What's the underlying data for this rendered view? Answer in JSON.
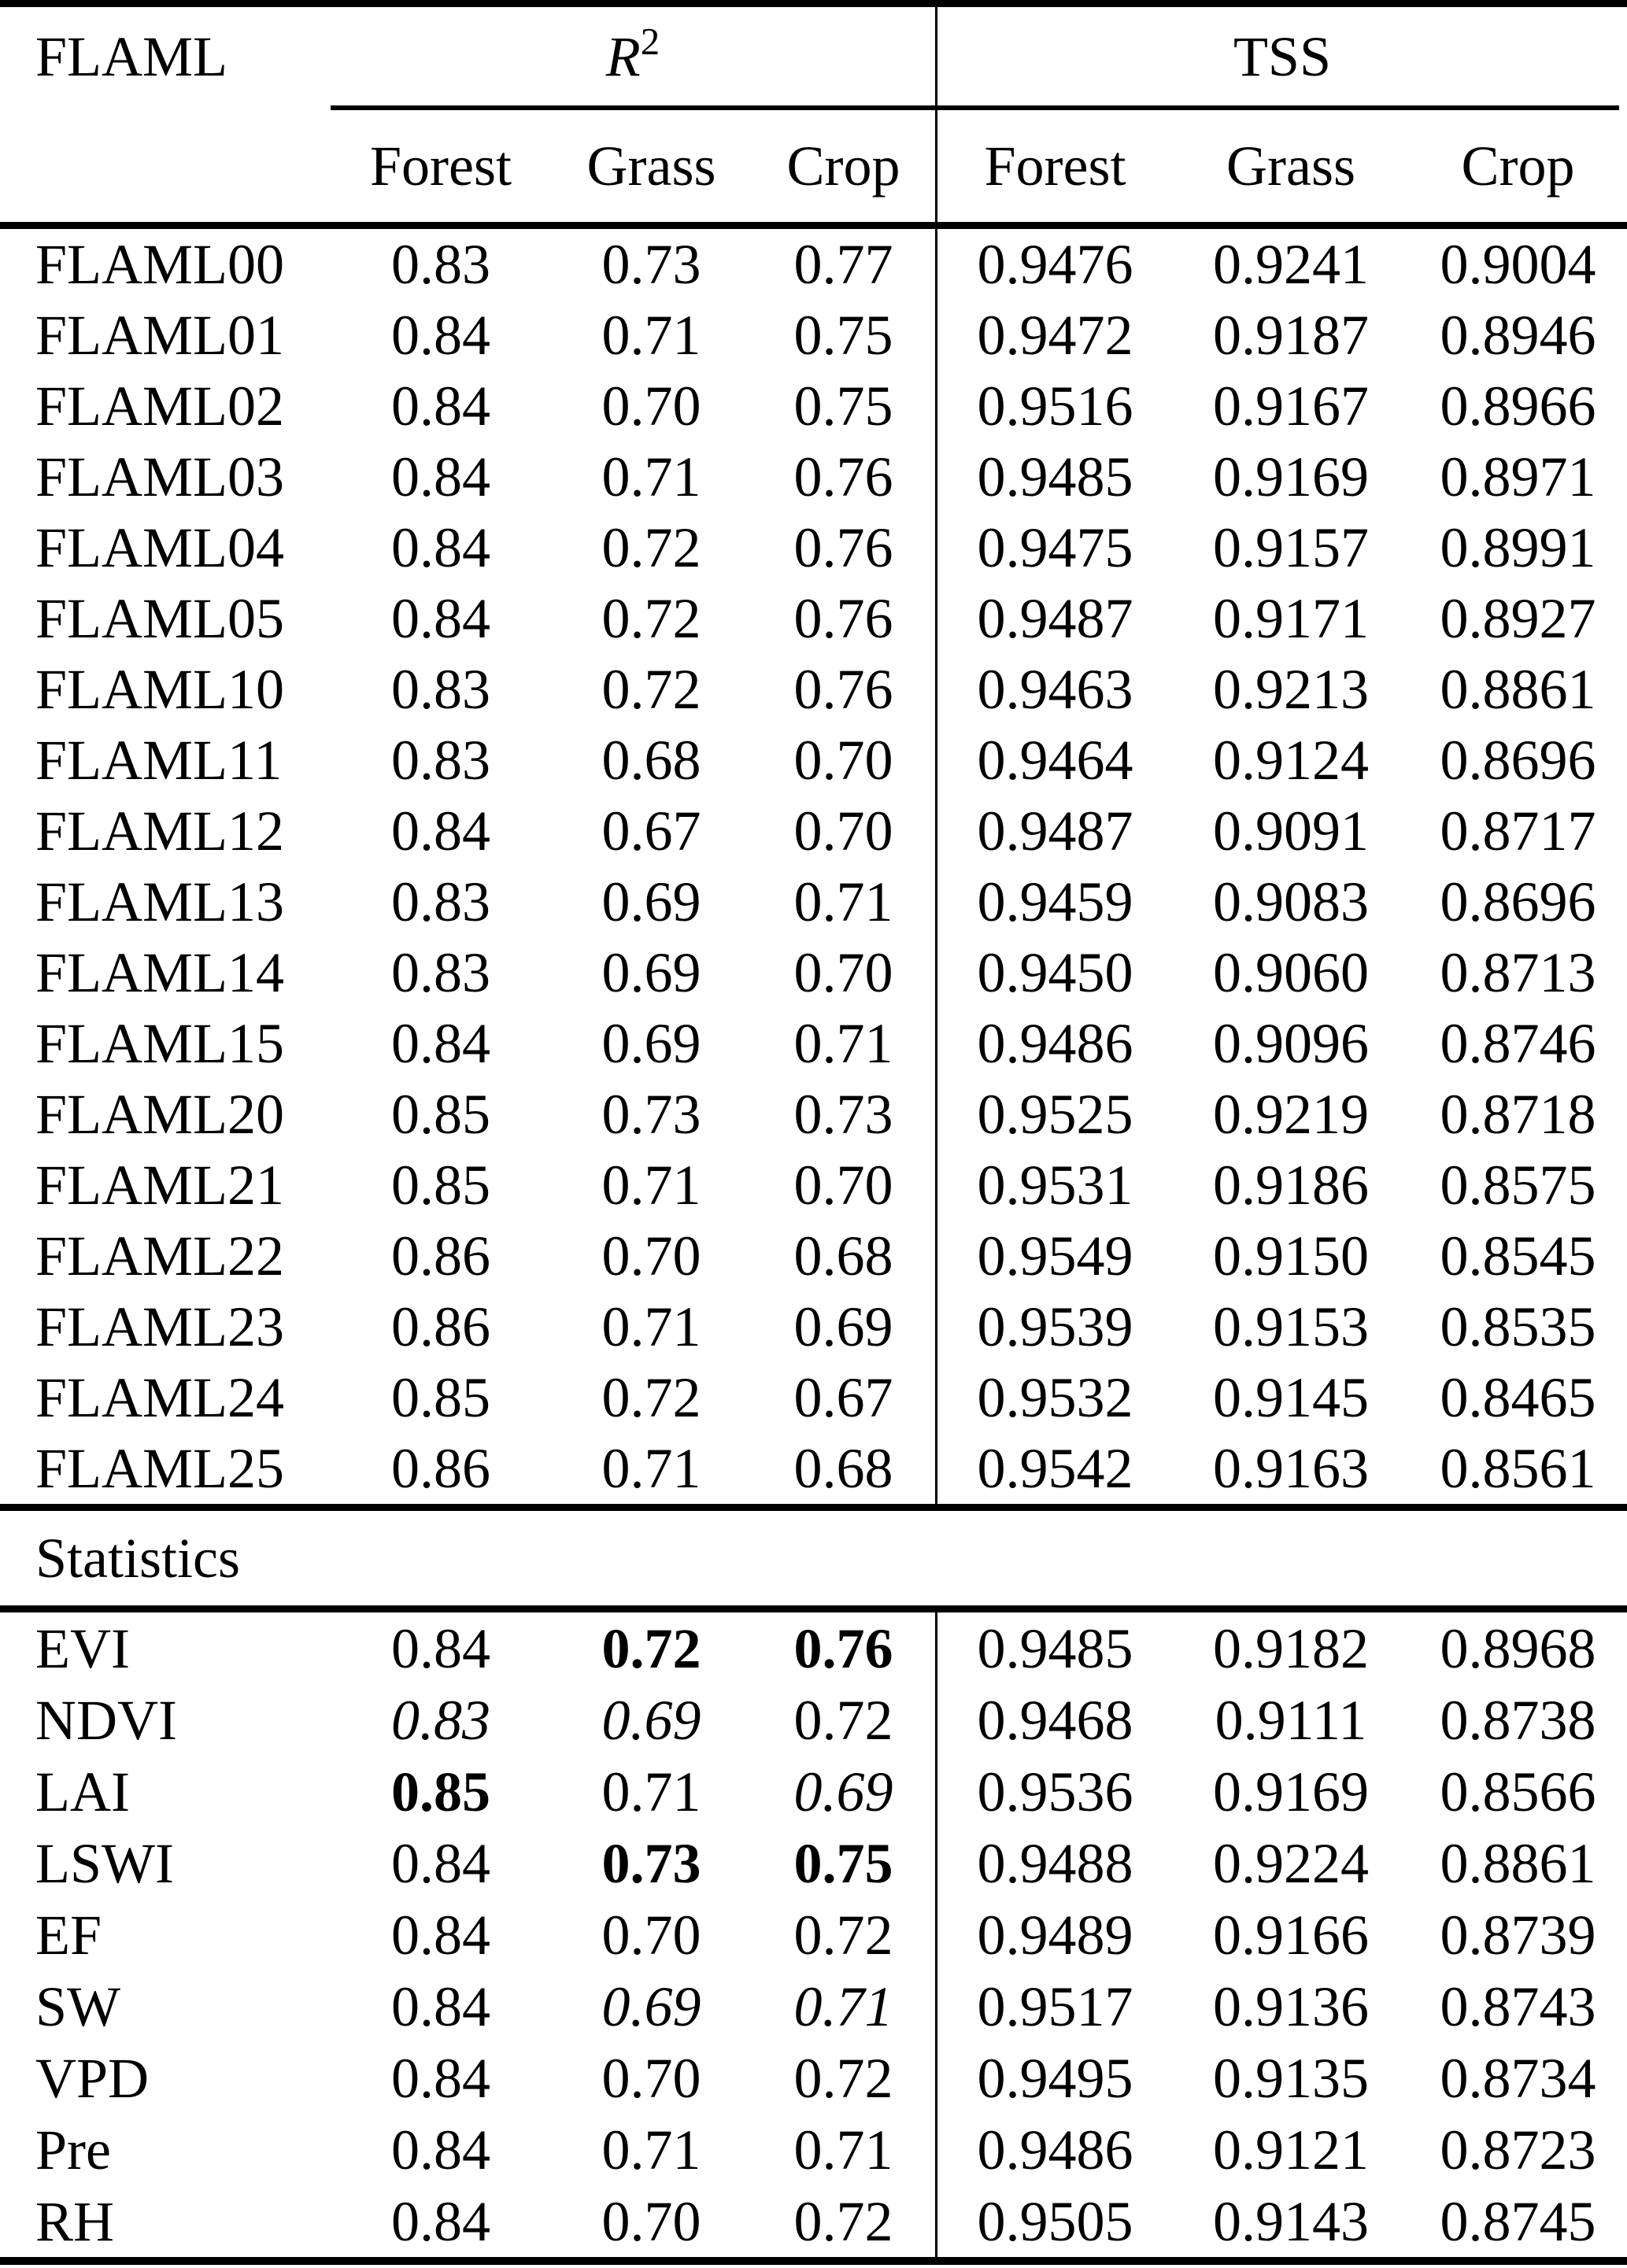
{
  "colors": {
    "text": "#000000",
    "background": "#ffffff",
    "rule": "#000000"
  },
  "table": {
    "corner_label": "FLAML",
    "header": {
      "r2_base": "R",
      "r2_sup": "2",
      "tss": "TSS"
    },
    "subheaders": [
      "Forest",
      "Grass",
      "Crop",
      "Forest",
      "Grass",
      "Crop"
    ],
    "section_label": "Statistics",
    "model_rows": [
      {
        "label": "FLAML00",
        "values": [
          "0.83",
          "0.73",
          "0.77",
          "0.9476",
          "0.9241",
          "0.9004"
        ]
      },
      {
        "label": "FLAML01",
        "values": [
          "0.84",
          "0.71",
          "0.75",
          "0.9472",
          "0.9187",
          "0.8946"
        ]
      },
      {
        "label": "FLAML02",
        "values": [
          "0.84",
          "0.70",
          "0.75",
          "0.9516",
          "0.9167",
          "0.8966"
        ]
      },
      {
        "label": "FLAML03",
        "values": [
          "0.84",
          "0.71",
          "0.76",
          "0.9485",
          "0.9169",
          "0.8971"
        ]
      },
      {
        "label": "FLAML04",
        "values": [
          "0.84",
          "0.72",
          "0.76",
          "0.9475",
          "0.9157",
          "0.8991"
        ]
      },
      {
        "label": "FLAML05",
        "values": [
          "0.84",
          "0.72",
          "0.76",
          "0.9487",
          "0.9171",
          "0.8927"
        ]
      },
      {
        "label": "FLAML10",
        "values": [
          "0.83",
          "0.72",
          "0.76",
          "0.9463",
          "0.9213",
          "0.8861"
        ]
      },
      {
        "label": "FLAML11",
        "values": [
          "0.83",
          "0.68",
          "0.70",
          "0.9464",
          "0.9124",
          "0.8696"
        ]
      },
      {
        "label": "FLAML12",
        "values": [
          "0.84",
          "0.67",
          "0.70",
          "0.9487",
          "0.9091",
          "0.8717"
        ]
      },
      {
        "label": "FLAML13",
        "values": [
          "0.83",
          "0.69",
          "0.71",
          "0.9459",
          "0.9083",
          "0.8696"
        ]
      },
      {
        "label": "FLAML14",
        "values": [
          "0.83",
          "0.69",
          "0.70",
          "0.9450",
          "0.9060",
          "0.8713"
        ]
      },
      {
        "label": "FLAML15",
        "values": [
          "0.84",
          "0.69",
          "0.71",
          "0.9486",
          "0.9096",
          "0.8746"
        ]
      },
      {
        "label": "FLAML20",
        "values": [
          "0.85",
          "0.73",
          "0.73",
          "0.9525",
          "0.9219",
          "0.8718"
        ]
      },
      {
        "label": "FLAML21",
        "values": [
          "0.85",
          "0.71",
          "0.70",
          "0.9531",
          "0.9186",
          "0.8575"
        ]
      },
      {
        "label": "FLAML22",
        "values": [
          "0.86",
          "0.70",
          "0.68",
          "0.9549",
          "0.9150",
          "0.8545"
        ]
      },
      {
        "label": "FLAML23",
        "values": [
          "0.86",
          "0.71",
          "0.69",
          "0.9539",
          "0.9153",
          "0.8535"
        ]
      },
      {
        "label": "FLAML24",
        "values": [
          "0.85",
          "0.72",
          "0.67",
          "0.9532",
          "0.9145",
          "0.8465"
        ]
      },
      {
        "label": "FLAML25",
        "values": [
          "0.86",
          "0.71",
          "0.68",
          "0.9542",
          "0.9163",
          "0.8561"
        ]
      }
    ],
    "stat_rows": [
      {
        "label": "EVI",
        "values": [
          "0.84",
          "0.72",
          "0.76",
          "0.9485",
          "0.9182",
          "0.8968"
        ],
        "styles": [
          "",
          "bold",
          "bold",
          "",
          "",
          ""
        ]
      },
      {
        "label": "NDVI",
        "values": [
          "0.83",
          "0.69",
          "0.72",
          "0.9468",
          "0.9111",
          "0.8738"
        ],
        "styles": [
          "italic",
          "italic",
          "",
          "",
          "",
          ""
        ]
      },
      {
        "label": "LAI",
        "values": [
          "0.85",
          "0.71",
          "0.69",
          "0.9536",
          "0.9169",
          "0.8566"
        ],
        "styles": [
          "bold",
          "",
          "italic",
          "",
          "",
          ""
        ]
      },
      {
        "label": "LSWI",
        "values": [
          "0.84",
          "0.73",
          "0.75",
          "0.9488",
          "0.9224",
          "0.8861"
        ],
        "styles": [
          "",
          "bold",
          "bold",
          "",
          "",
          ""
        ]
      },
      {
        "label": "EF",
        "values": [
          "0.84",
          "0.70",
          "0.72",
          "0.9489",
          "0.9166",
          "0.8739"
        ],
        "styles": [
          "",
          "",
          "",
          "",
          "",
          ""
        ]
      },
      {
        "label": "SW",
        "values": [
          "0.84",
          "0.69",
          "0.71",
          "0.9517",
          "0.9136",
          "0.8743"
        ],
        "styles": [
          "",
          "italic",
          "italic",
          "",
          "",
          ""
        ]
      },
      {
        "label": "VPD",
        "values": [
          "0.84",
          "0.70",
          "0.72",
          "0.9495",
          "0.9135",
          "0.8734"
        ],
        "styles": [
          "",
          "",
          "",
          "",
          "",
          ""
        ]
      },
      {
        "label": "Pre",
        "values": [
          "0.84",
          "0.71",
          "0.71",
          "0.9486",
          "0.9121",
          "0.8723"
        ],
        "styles": [
          "",
          "",
          "",
          "",
          "",
          ""
        ]
      },
      {
        "label": "RH",
        "values": [
          "0.84",
          "0.70",
          "0.72",
          "0.9505",
          "0.9143",
          "0.8745"
        ],
        "styles": [
          "",
          "",
          "",
          "",
          "",
          ""
        ]
      }
    ]
  }
}
